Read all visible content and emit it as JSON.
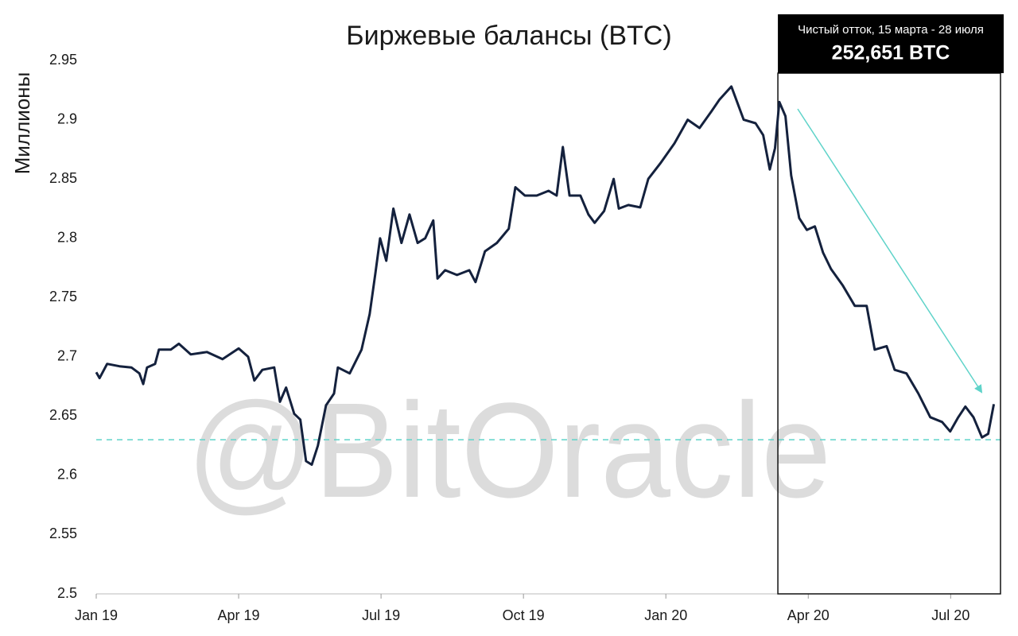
{
  "chart_data": {
    "type": "line",
    "title": "Биржевые балансы (BTC)",
    "y_label": "Миллионы",
    "watermark": "@BitOracle",
    "annotation": {
      "lines": [
        "Чистый отток, 15 марта - 28 июля",
        "252,651 BTC"
      ],
      "x_range": [
        14.36,
        19.05
      ]
    },
    "reference_line": {
      "value": 2.63,
      "color": "#5fd3c9",
      "dashed": true
    },
    "color": "#14213d",
    "x": [
      0.0,
      0.07,
      0.23,
      0.49,
      0.74,
      0.91,
      0.99,
      1.07,
      1.24,
      1.32,
      1.57,
      1.74,
      1.99,
      2.33,
      2.66,
      3.0,
      3.2,
      3.33,
      3.5,
      3.75,
      3.87,
      4.0,
      4.17,
      4.3,
      4.42,
      4.54,
      4.67,
      4.84,
      5.01,
      5.09,
      5.34,
      5.59,
      5.76,
      5.88,
      5.98,
      6.11,
      6.26,
      6.43,
      6.6,
      6.77,
      6.93,
      7.1,
      7.19,
      7.35,
      7.6,
      7.86,
      7.99,
      8.19,
      8.44,
      8.69,
      8.83,
      9.03,
      9.28,
      9.53,
      9.7,
      9.83,
      9.97,
      10.2,
      10.37,
      10.5,
      10.7,
      10.9,
      11.01,
      11.21,
      11.46,
      11.63,
      11.88,
      12.18,
      12.46,
      12.71,
      12.96,
      13.13,
      13.38,
      13.64,
      13.89,
      14.05,
      14.19,
      14.3,
      14.39,
      14.52,
      14.64,
      14.81,
      14.97,
      15.14,
      15.31,
      15.48,
      15.73,
      15.98,
      16.23,
      16.4,
      16.65,
      16.82,
      17.07,
      17.32,
      17.57,
      17.82,
      17.99,
      18.16,
      18.31,
      18.48,
      18.66,
      18.79,
      18.91
    ],
    "values": [
      2.687,
      2.682,
      2.694,
      2.692,
      2.691,
      2.686,
      2.677,
      2.691,
      2.694,
      2.706,
      2.706,
      2.711,
      2.702,
      2.704,
      2.698,
      2.707,
      2.7,
      2.68,
      2.689,
      2.691,
      2.662,
      2.674,
      2.652,
      2.647,
      2.612,
      2.609,
      2.625,
      2.659,
      2.669,
      2.691,
      2.686,
      2.706,
      2.736,
      2.77,
      2.8,
      2.781,
      2.825,
      2.796,
      2.82,
      2.796,
      2.8,
      2.815,
      2.766,
      2.773,
      2.769,
      2.773,
      2.763,
      2.789,
      2.796,
      2.808,
      2.843,
      2.836,
      2.836,
      2.84,
      2.836,
      2.877,
      2.836,
      2.836,
      2.82,
      2.813,
      2.823,
      2.85,
      2.825,
      2.828,
      2.826,
      2.85,
      2.863,
      2.88,
      2.9,
      2.893,
      2.907,
      2.917,
      2.928,
      2.9,
      2.897,
      2.887,
      2.858,
      2.876,
      2.915,
      2.903,
      2.853,
      2.817,
      2.807,
      2.81,
      2.788,
      2.774,
      2.76,
      2.743,
      2.743,
      2.706,
      2.709,
      2.689,
      2.686,
      2.669,
      2.649,
      2.645,
      2.637,
      2.649,
      2.658,
      2.649,
      2.632,
      2.635,
      2.66
    ],
    "xlim": [
      0,
      19.05
    ],
    "xticks": [
      {
        "value": 0,
        "label": "Jan 19"
      },
      {
        "value": 3,
        "label": "Apr 19"
      },
      {
        "value": 6,
        "label": "Jul 19"
      },
      {
        "value": 9,
        "label": "Oct 19"
      },
      {
        "value": 12,
        "label": "Jan 20"
      },
      {
        "value": 15,
        "label": "Apr 20"
      },
      {
        "value": 18,
        "label": "Jul 20"
      }
    ],
    "ylim": [
      2.5,
      2.95
    ],
    "yticks": [
      2.5,
      2.55,
      2.6,
      2.65,
      2.7,
      2.75,
      2.8,
      2.85,
      2.9,
      2.95
    ],
    "grid": false
  }
}
